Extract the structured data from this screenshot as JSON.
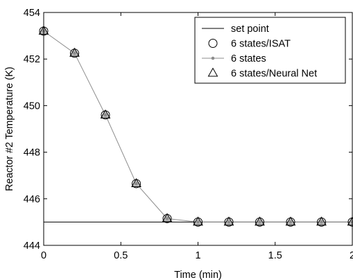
{
  "chart_data": {
    "type": "line",
    "title": "",
    "xlabel": "Time (min)",
    "ylabel": "Reactor #2 Temperature (K)",
    "xlim": [
      0,
      2
    ],
    "ylim": [
      444,
      454
    ],
    "xticks": [
      0,
      0.5,
      1,
      1.5,
      2
    ],
    "xtick_labels": [
      "0",
      "0.5",
      "1",
      "1.5",
      "2"
    ],
    "yticks": [
      444,
      446,
      448,
      450,
      452,
      454
    ],
    "ytick_labels": [
      "444",
      "446",
      "448",
      "450",
      "452",
      "454"
    ],
    "grid": false,
    "legend_position": "top-right",
    "x": [
      0,
      0.2,
      0.4,
      0.6,
      0.8,
      1.0,
      1.2,
      1.4,
      1.6,
      1.8,
      2.0
    ],
    "series": [
      {
        "name": "set point",
        "style": "line",
        "color": "#000000",
        "x": [
          0,
          2
        ],
        "values": [
          445,
          445
        ]
      },
      {
        "name": "6 states/ISAT",
        "style": "circle-marker",
        "color": "#000000",
        "values": [
          453.2,
          452.25,
          449.6,
          446.65,
          445.15,
          445.0,
          445.0,
          445.0,
          445.0,
          445.0,
          445.0
        ]
      },
      {
        "name": "6 states",
        "style": "line-dot",
        "color": "#8c8c8c",
        "values": [
          453.2,
          452.25,
          449.6,
          446.65,
          445.15,
          445.0,
          445.0,
          445.0,
          445.0,
          445.0,
          445.0
        ]
      },
      {
        "name": "6 states/Neural Net",
        "style": "triangle-marker",
        "color": "#000000",
        "values": [
          453.2,
          452.25,
          449.6,
          446.65,
          445.15,
          445.0,
          445.0,
          445.0,
          445.0,
          445.0,
          445.0
        ]
      }
    ]
  }
}
